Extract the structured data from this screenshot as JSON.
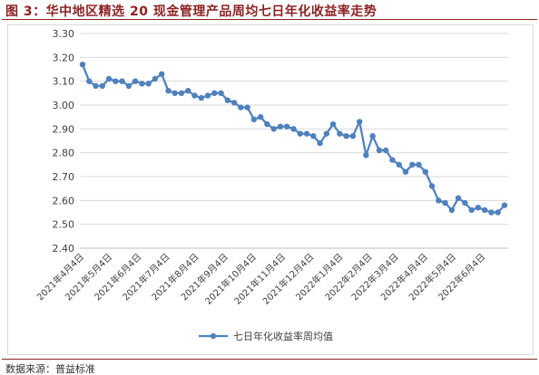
{
  "chart_data": {
    "type": "line",
    "title": "图 3：华中地区精选 20 现金管理产品周均七日年化收益率走势",
    "xlabel": "",
    "ylabel": "",
    "x": [
      "2021-04-04",
      "2021-04-11",
      "2021-04-18",
      "2021-04-25",
      "2021-05-02",
      "2021-05-09",
      "2021-05-16",
      "2021-05-23",
      "2021-05-30",
      "2021-06-06",
      "2021-06-13",
      "2021-06-20",
      "2021-06-27",
      "2021-07-04",
      "2021-07-11",
      "2021-07-18",
      "2021-07-25",
      "2021-08-01",
      "2021-08-08",
      "2021-08-15",
      "2021-08-22",
      "2021-08-29",
      "2021-09-05",
      "2021-09-12",
      "2021-09-19",
      "2021-09-26",
      "2021-10-03",
      "2021-10-10",
      "2021-10-17",
      "2021-10-24",
      "2021-10-31",
      "2021-11-07",
      "2021-11-14",
      "2021-11-21",
      "2021-11-28",
      "2021-12-05",
      "2021-12-12",
      "2021-12-19",
      "2021-12-26",
      "2022-01-02",
      "2022-01-09",
      "2022-01-16",
      "2022-01-23",
      "2022-01-30",
      "2022-02-06",
      "2022-02-13",
      "2022-02-20",
      "2022-02-27",
      "2022-03-06",
      "2022-03-13",
      "2022-03-20",
      "2022-03-27",
      "2022-04-03",
      "2022-04-10",
      "2022-04-17",
      "2022-04-24",
      "2022-05-01",
      "2022-05-08",
      "2022-05-15",
      "2022-05-22",
      "2022-05-29",
      "2022-06-05",
      "2022-06-12",
      "2022-06-19",
      "2022-06-26"
    ],
    "series": [
      {
        "name": "七日年化收益率周均值",
        "color": "#4F81BD",
        "marker": "circle",
        "values": [
          3.17,
          3.1,
          3.08,
          3.08,
          3.11,
          3.1,
          3.1,
          3.08,
          3.1,
          3.09,
          3.09,
          3.11,
          3.13,
          3.06,
          3.05,
          3.05,
          3.06,
          3.04,
          3.03,
          3.04,
          3.05,
          3.05,
          3.02,
          3.01,
          2.99,
          2.99,
          2.94,
          2.95,
          2.92,
          2.9,
          2.91,
          2.91,
          2.9,
          2.88,
          2.88,
          2.87,
          2.84,
          2.88,
          2.92,
          2.88,
          2.87,
          2.87,
          2.93,
          2.79,
          2.87,
          2.81,
          2.81,
          2.77,
          2.75,
          2.72,
          2.75,
          2.75,
          2.72,
          2.66,
          2.6,
          2.59,
          2.56,
          2.61,
          2.59,
          2.56,
          2.57,
          2.56,
          2.55,
          2.55,
          2.58
        ]
      }
    ],
    "ylim": [
      2.4,
      3.3
    ],
    "ytick_labels": [
      "3.30",
      "3.20",
      "3.10",
      "3.00",
      "2.90",
      "2.80",
      "2.70",
      "2.60",
      "2.50",
      "2.40"
    ],
    "xlim": [
      "2021-04-04",
      "2022-06-26"
    ],
    "xticks": [
      {
        "date": "2021-04-04",
        "label": "2021年4月4日"
      },
      {
        "date": "2021-05-04",
        "label": "2021年5月4日"
      },
      {
        "date": "2021-06-04",
        "label": "2021年6月4日"
      },
      {
        "date": "2021-07-04",
        "label": "2021年7月4日"
      },
      {
        "date": "2021-08-04",
        "label": "2021年8月4日"
      },
      {
        "date": "2021-09-04",
        "label": "2021年9月4日"
      },
      {
        "date": "2021-10-04",
        "label": "2021年10月4日"
      },
      {
        "date": "2021-11-04",
        "label": "2021年11月4日"
      },
      {
        "date": "2021-12-04",
        "label": "2021年12月4日"
      },
      {
        "date": "2022-01-04",
        "label": "2022年1月4日"
      },
      {
        "date": "2022-02-04",
        "label": "2022年2月4日"
      },
      {
        "date": "2022-03-04",
        "label": "2022年3月4日"
      },
      {
        "date": "2022-04-04",
        "label": "2022年4月4日"
      },
      {
        "date": "2022-05-04",
        "label": "2022年5月4日"
      },
      {
        "date": "2022-06-04",
        "label": "2022年6月4日"
      }
    ],
    "grid": {
      "horizontal": true,
      "vertical": false
    },
    "legend": {
      "position": "bottom"
    }
  },
  "source": "数据来源：普益标准",
  "colors": {
    "title": "#8B2323",
    "rule": "#8B2323",
    "grid": "#D9D9D9",
    "axis_line": "#BFBFBF",
    "frame": "#D9D9D9"
  }
}
